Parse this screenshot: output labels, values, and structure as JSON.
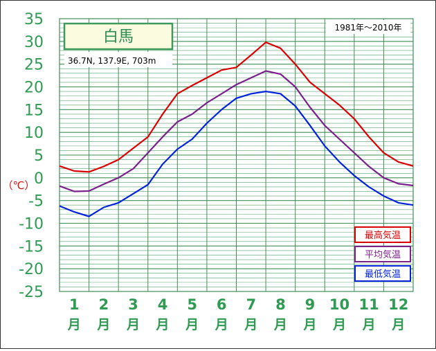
{
  "chart_data": {
    "type": "line",
    "title": "白馬",
    "subtitle": "36.7N,  137.9E,  703m",
    "period": "1981年〜2010年",
    "ylabel": "（℃）",
    "ylim": [
      -25,
      35
    ],
    "y_ticks": [
      35,
      30,
      25,
      20,
      15,
      10,
      5,
      0,
      -5,
      -10,
      -15,
      -20,
      -25
    ],
    "month_numbers": [
      "1",
      "2",
      "3",
      "4",
      "5",
      "6",
      "7",
      "8",
      "9",
      "10",
      "11",
      "12"
    ],
    "month_unit": "月",
    "grid": true,
    "legend_position": "bottom-right",
    "x_semimonth": [
      0,
      0.5,
      1,
      1.5,
      2,
      2.5,
      3,
      3.5,
      4,
      4.5,
      5,
      5.5,
      6,
      6.5,
      7,
      7.5,
      8,
      8.5,
      9,
      9.5,
      10,
      10.5,
      11,
      11.5,
      12
    ],
    "series": [
      {
        "name": "最高気温",
        "color": "#dd0000",
        "values": [
          2.6,
          1.5,
          1.3,
          2.5,
          4.0,
          6.5,
          9.0,
          14.0,
          18.5,
          20.3,
          22.0,
          23.7,
          24.3,
          27.0,
          29.8,
          28.5,
          25.0,
          21.0,
          18.5,
          16.0,
          13.0,
          9.0,
          5.5,
          3.5,
          2.6
        ]
      },
      {
        "name": "平均気温",
        "color": "#7b1f8c",
        "values": [
          -1.8,
          -3.0,
          -2.9,
          -1.4,
          0.0,
          2.0,
          5.5,
          9.0,
          12.3,
          14.0,
          16.5,
          18.5,
          20.5,
          22.0,
          23.5,
          22.8,
          20.0,
          15.5,
          11.5,
          8.5,
          5.5,
          2.5,
          0.0,
          -1.3,
          -1.7
        ]
      },
      {
        "name": "最低気温",
        "color": "#0022dd",
        "values": [
          -6.2,
          -7.5,
          -8.5,
          -6.5,
          -5.5,
          -3.5,
          -1.5,
          3.0,
          6.3,
          8.5,
          12.0,
          15.0,
          17.5,
          18.5,
          19.0,
          18.5,
          15.8,
          11.5,
          7.0,
          3.5,
          0.5,
          -2.0,
          -4.0,
          -5.5,
          -6.0
        ]
      }
    ]
  }
}
